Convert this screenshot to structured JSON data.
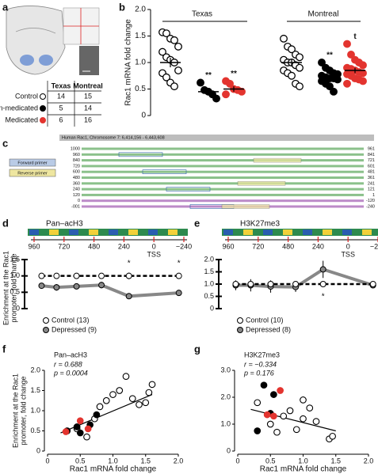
{
  "panel_labels": [
    "a",
    "b",
    "c",
    "d",
    "e",
    "f",
    "g"
  ],
  "table_a": {
    "header": [
      "Texas",
      "Montreal"
    ],
    "marker_colors": [
      "#ffffff",
      "#000000",
      "#e3342f"
    ],
    "rows": [
      [
        "Control",
        14,
        15
      ],
      [
        "Non-medicated",
        5,
        14
      ],
      [
        "Medicated",
        6,
        16
      ]
    ]
  },
  "sequence_c": {
    "title": "Human Rac1, Chromosome 7: 6,414,156 - 6,443,608",
    "legend": [
      "Forward primer",
      "Reverse primer"
    ],
    "left_numbers": [
      "1000",
      "960",
      "840",
      "720",
      "600",
      "480",
      "360",
      "240",
      "120",
      "0",
      "-001"
    ],
    "right_numbers": [
      "961",
      "841",
      "721",
      "601",
      "481",
      "361",
      "241",
      "121",
      "1",
      "-120",
      "-240"
    ]
  },
  "chart_data": [
    {
      "type": "strip",
      "y_label": "Rac1 mRNA fold change",
      "groups": [
        "Texas",
        "Montreal"
      ],
      "ylim": [
        0,
        2
      ],
      "yticks": [
        0,
        0.5,
        {
          "value": 1,
          "label": "1.0"
        },
        1.5,
        {
          "value": 2,
          "label": "2.0"
        }
      ],
      "series": [
        {
          "color": "#ffffff",
          "stroke": "#000000",
          "values": [
            [
              1.57,
              1.55,
              1.45,
              1.42,
              1.3,
              1.2,
              1.1,
              1.05,
              1.0,
              0.85,
              0.8,
              0.72,
              0.62,
              0.55
            ],
            [
              1.45,
              1.3,
              1.25,
              1.15,
              1.1,
              1.05,
              1.0,
              1.0,
              0.95,
              0.9,
              0.85,
              0.8,
              0.75,
              0.6,
              0.55
            ]
          ],
          "means": [
            1.0,
            1.0
          ],
          "errors": [
            0.09,
            0.06
          ]
        },
        {
          "color": "#000000",
          "stroke": "#000000",
          "values": [
            [
              0.62,
              0.48,
              0.45,
              0.4,
              0.32
            ],
            [
              1.0,
              0.9,
              0.85,
              0.8,
              0.78,
              0.75,
              0.72,
              0.7,
              0.7,
              0.68,
              0.65,
              0.6,
              0.55,
              0.45
            ]
          ],
          "means": [
            0.45,
            0.73
          ],
          "errors": [
            0.05,
            0.04
          ],
          "annotations": [
            "**",
            "**"
          ]
        },
        {
          "color": "#e3342f",
          "stroke": "#e3342f",
          "values": [
            [
              0.65,
              0.6,
              0.5,
              0.48,
              0.45,
              0.4
            ],
            [
              1.35,
              1.15,
              1.05,
              1.0,
              0.95,
              0.9,
              0.88,
              0.85,
              0.82,
              0.8,
              0.78,
              0.75,
              0.7,
              0.68,
              0.65,
              0.6
            ]
          ],
          "means": [
            0.5,
            0.85
          ],
          "errors": [
            0.05,
            0.05
          ],
          "annotations": [
            "**",
            "t"
          ]
        }
      ]
    },
    {
      "type": "line",
      "title": "Pan–acH3",
      "y_label": [
        "Enrichment at the Rac1",
        "promoter, fold change"
      ],
      "x": [
        900,
        780,
        620,
        420,
        200,
        -200
      ],
      "xlim": [
        960,
        -240
      ],
      "xticks": [
        960,
        720,
        480,
        240,
        0,
        {
          "value": -240,
          "label": "−240"
        }
      ],
      "tss_label": "TSS",
      "ylim": [
        0,
        1.5
      ],
      "yticks": [
        0,
        0.5,
        {
          "value": 1,
          "label": "1.0"
        },
        1.5
      ],
      "series": [
        {
          "name": "Control (13)",
          "color": "#ffffff",
          "dashed": true,
          "values": [
            1.0,
            1.0,
            1.0,
            1.0,
            1.0,
            1.0
          ],
          "errors": [
            0.05,
            0.06,
            0.05,
            0.06,
            0.1,
            0.05
          ]
        },
        {
          "name": "Depressed (9)",
          "color": "#888888",
          "values": [
            0.7,
            0.65,
            0.68,
            0.72,
            0.38,
            0.48
          ],
          "errors": [
            0.08,
            0.1,
            0.07,
            0.1,
            0.06,
            0.04
          ]
        }
      ],
      "annotations": [
        "*",
        "*"
      ]
    },
    {
      "type": "line",
      "title": "H3K27me3",
      "x": [
        900,
        780,
        620,
        420,
        200,
        -200
      ],
      "xlim": [
        960,
        -240
      ],
      "xticks": [
        960,
        720,
        480,
        240,
        0,
        {
          "value": -240,
          "label": "−240"
        }
      ],
      "tss_label": "TSS",
      "ylim": [
        0,
        2
      ],
      "yticks": [
        0,
        0.5,
        {
          "value": 1,
          "label": "1.0"
        },
        1.5,
        {
          "value": 2,
          "label": "2.0"
        }
      ],
      "series": [
        {
          "name": "Control (10)",
          "color": "#ffffff",
          "dashed": true,
          "values": [
            1.0,
            1.0,
            1.0,
            1.0,
            1.0,
            1.0
          ],
          "errors": [
            0.05,
            0.1,
            0.1,
            0.1,
            0.1,
            0.05
          ]
        },
        {
          "name": "Depressed (8)",
          "color": "#888888",
          "values": [
            0.95,
            0.95,
            0.9,
            0.88,
            1.6,
            0.95
          ],
          "errors": [
            0.2,
            0.25,
            0.25,
            0.2,
            0.35,
            0.1
          ]
        }
      ],
      "annotations": [
        "*"
      ]
    },
    {
      "type": "scatter",
      "title": "Pan–acH3",
      "stats": [
        "r = 0.688",
        "p = 0.0004"
      ],
      "y_label": [
        "Enrichment at the Rac1",
        "promoter, fold change"
      ],
      "x_label": "Rac1 mRNA fold change",
      "xlim": [
        0,
        2
      ],
      "xticks": [
        0,
        0.5,
        {
          "value": 1,
          "label": "1.0"
        },
        1.5,
        {
          "value": 2,
          "label": "2.0"
        }
      ],
      "ylim": [
        0,
        2
      ],
      "yticks": [
        0,
        0.5,
        {
          "value": 1,
          "label": "1.0"
        },
        1.5,
        {
          "value": 2,
          "label": "2.0"
        }
      ],
      "series": [
        {
          "color": "#ffffff",
          "stroke": "#000000",
          "x": [
            0.45,
            0.6,
            0.72,
            0.8,
            0.9,
            1.0,
            1.1,
            1.2,
            1.3,
            1.4,
            1.5,
            1.55,
            1.6
          ],
          "values": [
            0.55,
            0.35,
            0.8,
            1.1,
            1.25,
            1.4,
            1.5,
            1.85,
            1.3,
            1.15,
            1.2,
            1.45,
            1.65
          ]
        },
        {
          "color": "#000000",
          "stroke": "#000000",
          "x": [
            0.3,
            0.45,
            0.5,
            0.65,
            0.75
          ],
          "values": [
            0.5,
            0.6,
            0.45,
            0.65,
            0.9
          ]
        },
        {
          "color": "#e3342f",
          "stroke": "#e3342f",
          "x": [
            0.28,
            0.5,
            0.62
          ],
          "values": [
            0.48,
            0.75,
            0.55
          ]
        }
      ],
      "fit": {
        "x": [
          0.2,
          1.6
        ],
        "y": [
          0.45,
          1.4
        ]
      }
    },
    {
      "type": "scatter",
      "title": "H3K27me3",
      "stats": [
        "r = −0.334",
        "p = 0.176"
      ],
      "x_label": "Rac1 mRNA fold change",
      "xlim": [
        0,
        2
      ],
      "xticks": [
        0,
        0.5,
        {
          "value": 1,
          "label": "1.0"
        },
        1.5,
        {
          "value": 2,
          "label": "2.0"
        }
      ],
      "ylim": [
        0,
        3
      ],
      "yticks": [
        0,
        {
          "value": 1,
          "label": "1.0"
        },
        {
          "value": 2,
          "label": "2.0"
        },
        {
          "value": 3,
          "label": "3.0"
        }
      ],
      "series": [
        {
          "color": "#ffffff",
          "stroke": "#000000",
          "x": [
            0.3,
            0.5,
            0.6,
            0.7,
            0.8,
            0.9,
            1.0,
            1.0,
            1.1,
            1.2,
            1.4,
            1.45
          ],
          "values": [
            1.8,
            1.0,
            0.7,
            1.3,
            1.5,
            0.8,
            1.2,
            1.9,
            1.6,
            1.1,
            0.45,
            0.55
          ]
        },
        {
          "color": "#000000",
          "stroke": "#000000",
          "x": [
            0.3,
            0.4,
            0.5,
            0.55
          ],
          "values": [
            0.75,
            2.45,
            1.4,
            2.1
          ]
        },
        {
          "color": "#e3342f",
          "stroke": "#e3342f",
          "x": [
            0.45,
            0.55,
            0.65
          ],
          "values": [
            1.35,
            1.3,
            2.25
          ]
        }
      ],
      "fit": {
        "x": [
          0.2,
          1.5
        ],
        "y": [
          1.55,
          0.75
        ]
      }
    }
  ]
}
